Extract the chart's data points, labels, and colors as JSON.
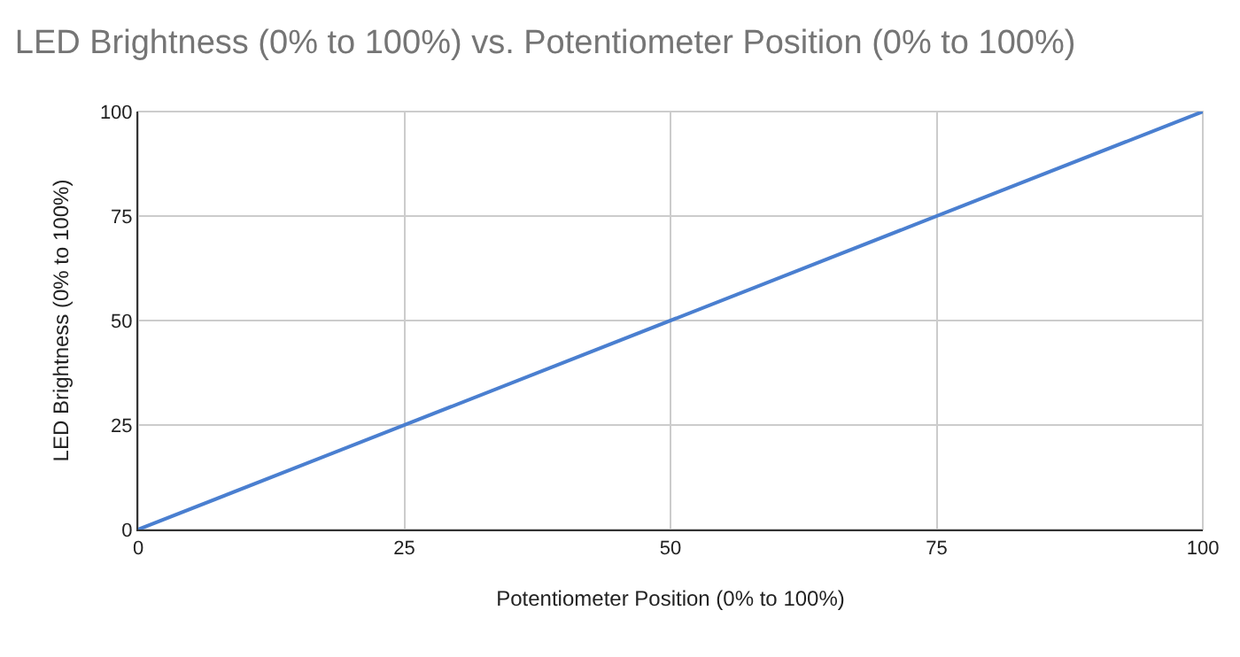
{
  "chart_data": {
    "type": "line",
    "title": "LED Brightness (0% to 100%) vs. Potentiometer Position (0% to 100%)",
    "xlabel": "Potentiometer Position (0% to 100%)",
    "ylabel": "LED Brightness (0% to 100%)",
    "x": [
      0,
      100
    ],
    "series": [
      {
        "color": "#4a7fd0",
        "values": [
          0,
          100
        ]
      }
    ],
    "xlim": [
      0,
      100
    ],
    "xticks": [
      0,
      25,
      50,
      75,
      100
    ],
    "ylim": [
      0,
      100
    ],
    "yticks": [
      0,
      25,
      50,
      75,
      100
    ],
    "grid": true,
    "marker": "none",
    "line_style": "solid"
  }
}
